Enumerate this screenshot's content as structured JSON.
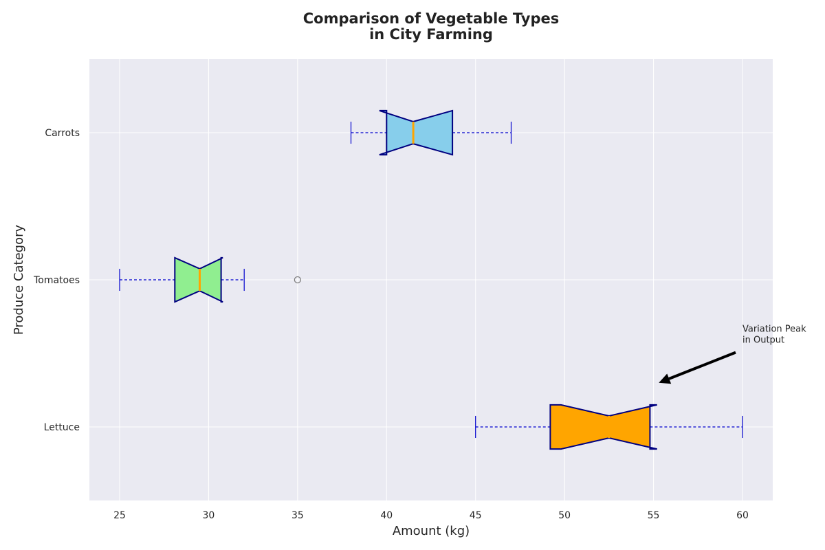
{
  "chart_data": {
    "type": "boxplot",
    "orientation": "horizontal",
    "notched": true,
    "title_lines": [
      "Comparison of Vegetable Types",
      "in City Farming"
    ],
    "xlabel": "Amount (kg)",
    "ylabel": "Produce Category",
    "xlim": [
      23.3,
      61.7
    ],
    "xticks": [
      25,
      30,
      35,
      40,
      45,
      50,
      55,
      60
    ],
    "grid": true,
    "background": "#eaeaf2",
    "categories": [
      "Lettuce",
      "Tomatoes",
      "Carrots"
    ],
    "boxes": [
      {
        "category": "Lettuce",
        "whisker_low": 45,
        "q1": 49.2,
        "median": 52.5,
        "q3": 54.8,
        "whisker_high": 60,
        "notch_low": 49.8,
        "notch_high": 55.2,
        "fill": "#ffa500",
        "outliers": []
      },
      {
        "category": "Tomatoes",
        "whisker_low": 25,
        "q1": 28.1,
        "median": 29.5,
        "q3": 30.7,
        "whisker_high": 32,
        "notch_low": 28.1,
        "notch_high": 30.8,
        "fill": "#90ee90",
        "outliers": [
          35
        ]
      },
      {
        "category": "Carrots",
        "whisker_low": 38,
        "q1": 40,
        "median": 41.5,
        "q3": 43.7,
        "whisker_high": 47,
        "notch_low": 39.6,
        "notch_high": 43.7,
        "fill": "#87ceeb",
        "outliers": []
      }
    ],
    "colors": {
      "edge": "#000080",
      "median": "#ffa500",
      "whisker": "#0000cd",
      "outlier_edge": "#808080",
      "grid": "#ffffff"
    },
    "annotation": {
      "text_lines": [
        "Variation Peak",
        "in Output"
      ],
      "target_category": "Lettuce",
      "target_x": 55.3,
      "target_y_offset": 0.3,
      "text_x": 60,
      "text_y_offset": 0.6
    }
  }
}
